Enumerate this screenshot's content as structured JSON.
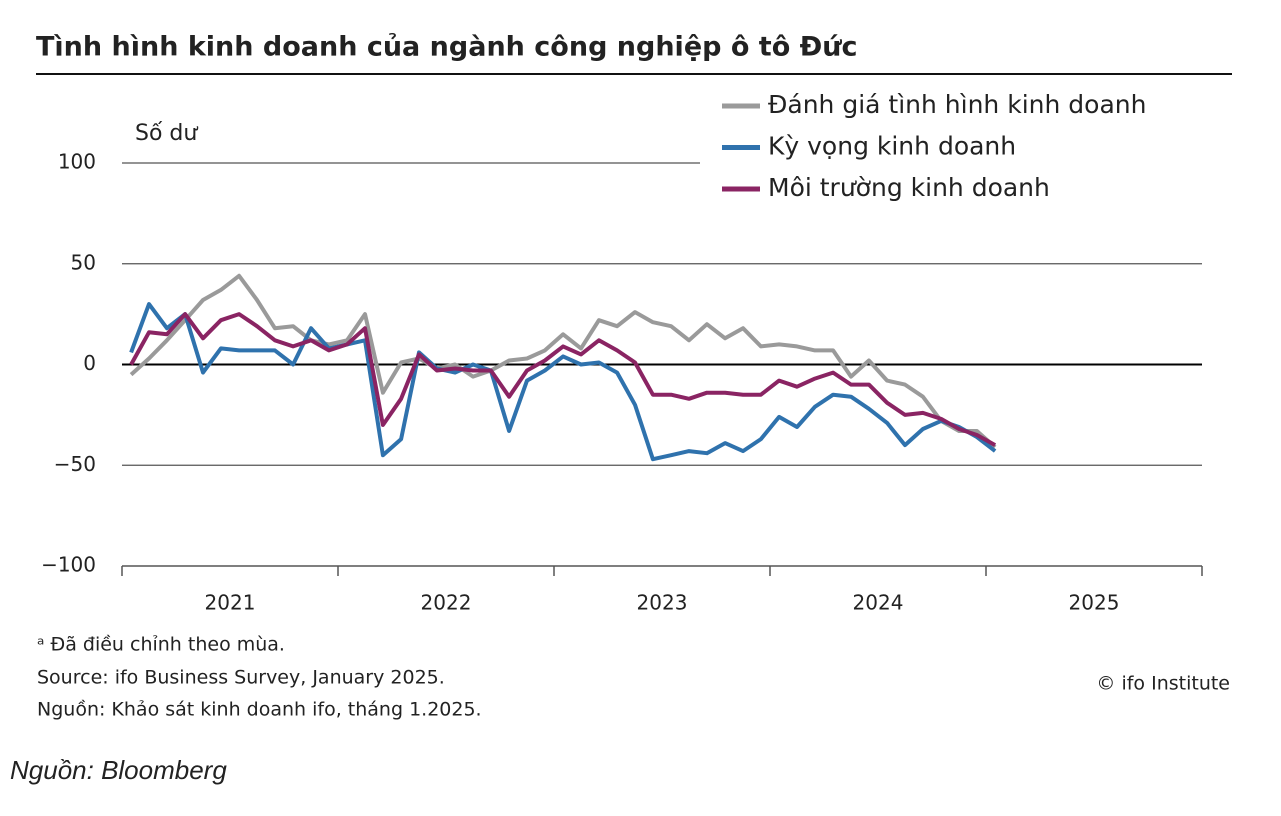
{
  "chart_data": {
    "type": "line",
    "title": "Tình hình kinh doanh của ngành công nghiệp ô tô Đức",
    "y_label": "Số dư",
    "x": [
      2021.042,
      2021.125,
      2021.208,
      2021.292,
      2021.375,
      2021.458,
      2021.542,
      2021.625,
      2021.708,
      2021.792,
      2021.875,
      2021.958,
      2022.042,
      2022.125,
      2022.208,
      2022.292,
      2022.375,
      2022.458,
      2022.542,
      2022.625,
      2022.708,
      2022.792,
      2022.875,
      2022.958,
      2023.042,
      2023.125,
      2023.208,
      2023.292,
      2023.375,
      2023.458,
      2023.542,
      2023.625,
      2023.708,
      2023.792,
      2023.875,
      2023.958,
      2024.042,
      2024.125,
      2024.208,
      2024.292,
      2024.375,
      2024.458,
      2024.542,
      2024.625,
      2024.708,
      2024.792,
      2024.875,
      2024.958,
      2025.042
    ],
    "series": [
      {
        "name": "Đánh giá tình hình kinh doanh",
        "color": "#9a9a9a",
        "values": [
          -5,
          3,
          12,
          22,
          32,
          37,
          44,
          32,
          18,
          19,
          12,
          10,
          12,
          25,
          -14,
          1,
          3,
          -2,
          0,
          -6,
          -3,
          2,
          3,
          7,
          15,
          8,
          22,
          19,
          26,
          21,
          19,
          12,
          20,
          13,
          18,
          9,
          10,
          9,
          7,
          7,
          -6,
          2,
          -8,
          -10,
          -16,
          -28,
          -33,
          -33,
          -41
        ]
      },
      {
        "name": "Kỳ vọng kinh doanh",
        "color": "#2f72ad",
        "values": [
          6,
          30,
          18,
          25,
          -4,
          8,
          7,
          7,
          7,
          0,
          18,
          8,
          10,
          12,
          -45,
          -37,
          6,
          -2,
          -4,
          0,
          -3,
          -33,
          -8,
          -3,
          4,
          0,
          1,
          -4,
          -20,
          -47,
          -45,
          -43,
          -44,
          -39,
          -43,
          -37,
          -26,
          -31,
          -21,
          -15,
          -16,
          -22,
          -29,
          -40,
          -32,
          -28,
          -31,
          -36,
          -43
        ]
      },
      {
        "name": "Môi trường kinh doanh",
        "color": "#8a2463",
        "values": [
          0,
          16,
          15,
          25,
          13,
          22,
          25,
          19,
          12,
          9,
          12,
          7,
          10,
          18,
          -30,
          -17,
          5,
          -3,
          -2,
          -3,
          -3,
          -16,
          -3,
          2,
          9,
          5,
          12,
          7,
          1,
          -15,
          -15,
          -17,
          -14,
          -14,
          -15,
          -15,
          -8,
          -11,
          -7,
          -4,
          -10,
          -10,
          -19,
          -25,
          -24,
          -27,
          -32,
          -35,
          -40
        ]
      }
    ],
    "xlim": [
      2021,
      2026
    ],
    "xticks": [
      {
        "value": 2021.5,
        "label": "2021"
      },
      {
        "value": 2022.5,
        "label": "2022"
      },
      {
        "value": 2023.5,
        "label": "2023"
      },
      {
        "value": 2024.5,
        "label": "2024"
      },
      {
        "value": 2025.5,
        "label": "2025"
      }
    ],
    "xtick_marks": [
      2021,
      2022,
      2023,
      2024,
      2025,
      2026
    ],
    "ylim": [
      -100,
      100
    ],
    "yticks": [
      {
        "value": -100,
        "label": "−100"
      },
      {
        "value": -50,
        "label": "−50"
      },
      0,
      50,
      100
    ],
    "grid": true,
    "notes": [
      "ᵃ Đã điều chỉnh theo mùa.",
      "Source: ifo Business Survey, January 2025.",
      "Nguồn: Khảo sát kinh doanh ifo, tháng 1.2025."
    ],
    "credit": "© ifo Institute",
    "source": "Nguồn: Bloomberg"
  }
}
